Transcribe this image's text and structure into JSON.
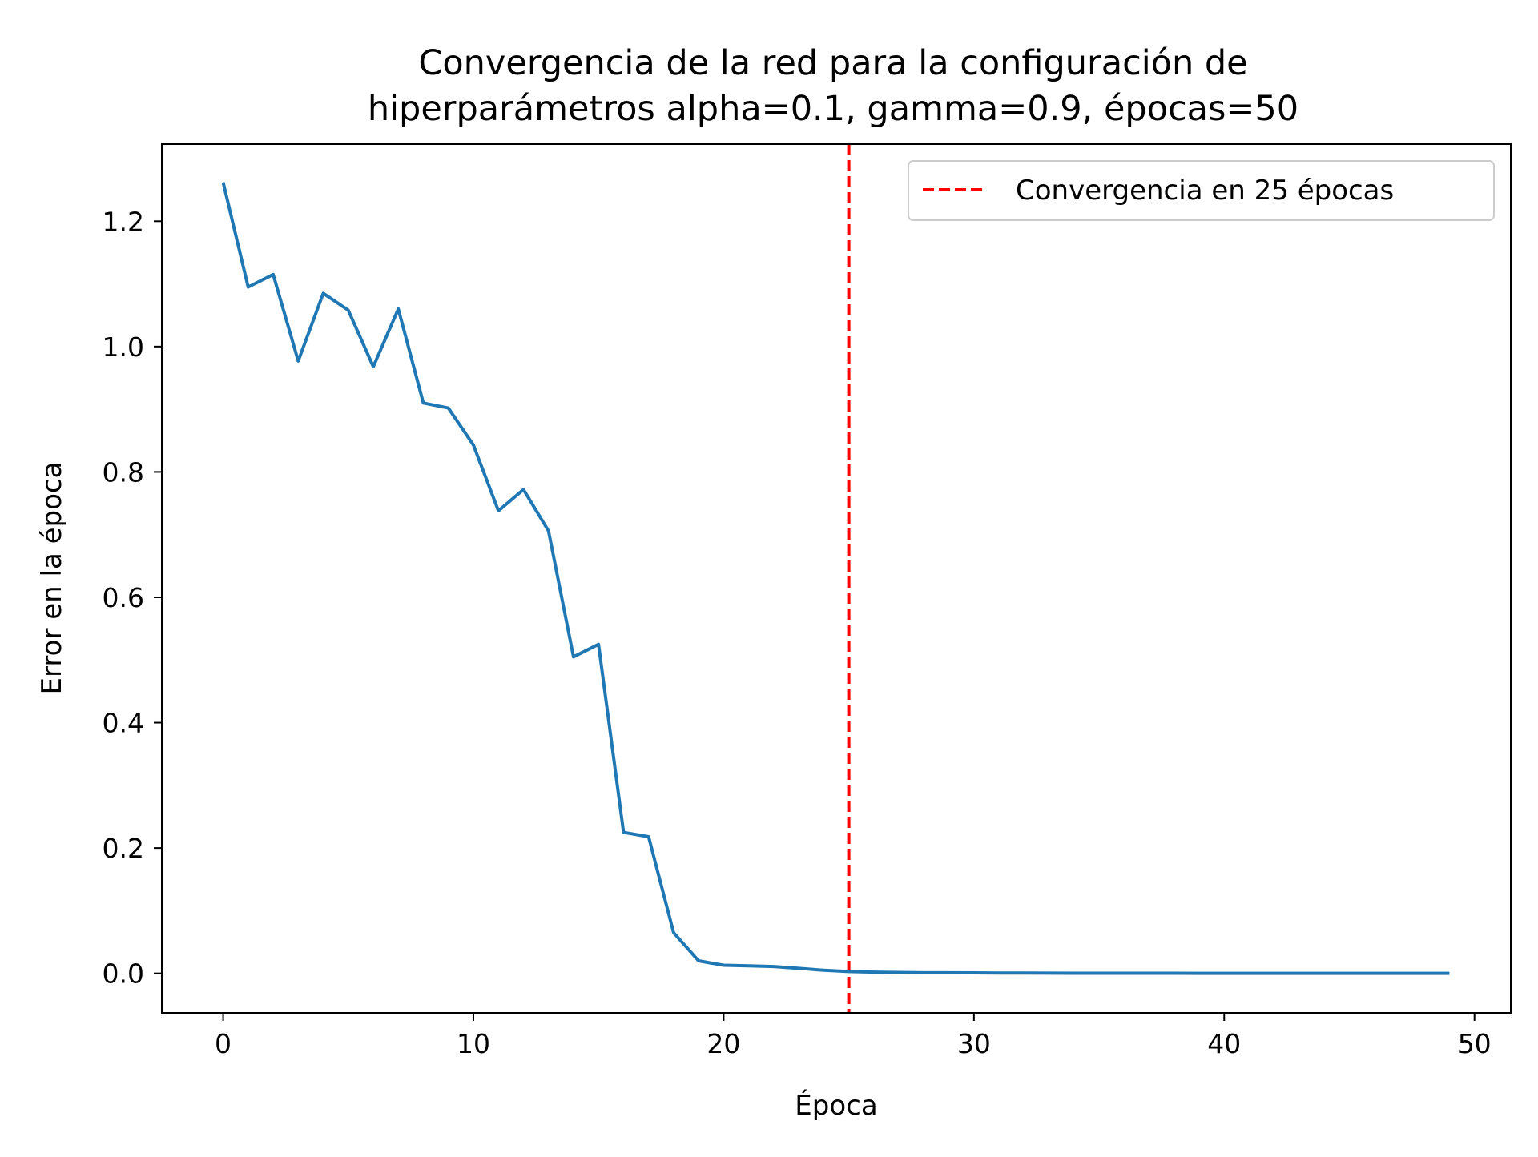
{
  "chart_data": {
    "type": "line",
    "title_lines": [
      "Convergencia de la red para la configuración de",
      "hiperparámetros alpha=0.1, gamma=0.9, épocas=50"
    ],
    "xlabel": "Época",
    "ylabel": "Error en la época",
    "xlim": [
      -2.45,
      51.45
    ],
    "ylim": [
      -0.063,
      1.323
    ],
    "x_ticks": [
      0,
      10,
      20,
      30,
      40,
      50
    ],
    "x_tick_labels": [
      "0",
      "10",
      "20",
      "30",
      "40",
      "50"
    ],
    "y_ticks": [
      0.0,
      0.2,
      0.4,
      0.6,
      0.8,
      1.0,
      1.2
    ],
    "y_tick_labels": [
      "0.0",
      "0.2",
      "0.4",
      "0.6",
      "0.8",
      "1.0",
      "1.2"
    ],
    "grid": false,
    "legend_position": "top-right",
    "series": [
      {
        "color": "#1f77b4",
        "x": [
          0,
          1,
          2,
          3,
          4,
          5,
          6,
          7,
          8,
          9,
          10,
          11,
          12,
          13,
          14,
          15,
          16,
          17,
          18,
          19,
          20,
          21,
          22,
          23,
          24,
          25,
          26,
          27,
          28,
          29,
          30,
          31,
          32,
          33,
          34,
          35,
          36,
          37,
          38,
          39,
          40,
          41,
          42,
          43,
          44,
          45,
          46,
          47,
          48,
          49
        ],
        "values": [
          1.262,
          1.095,
          1.115,
          0.977,
          1.085,
          1.058,
          0.968,
          1.06,
          0.91,
          0.902,
          0.843,
          0.738,
          0.772,
          0.706,
          0.505,
          0.525,
          0.225,
          0.218,
          0.065,
          0.02,
          0.013,
          0.012,
          0.011,
          0.008,
          0.005,
          0.003,
          0.002,
          0.0015,
          0.001,
          0.001,
          0.0008,
          0.0006,
          0.0005,
          0.0004,
          0.0003,
          0.0003,
          0.0002,
          0.0002,
          0.0002,
          0.0001,
          0.0001,
          0.0001,
          0.0001,
          0.0001,
          0.0001,
          0.0001,
          0.0001,
          0.0001,
          0.0001,
          0.0001
        ]
      }
    ],
    "reference_lines": [
      {
        "orientation": "vertical",
        "x": 25,
        "name": "Convergencia en 25 épocas",
        "color": "#ff0000",
        "style": "dashed"
      }
    ]
  }
}
